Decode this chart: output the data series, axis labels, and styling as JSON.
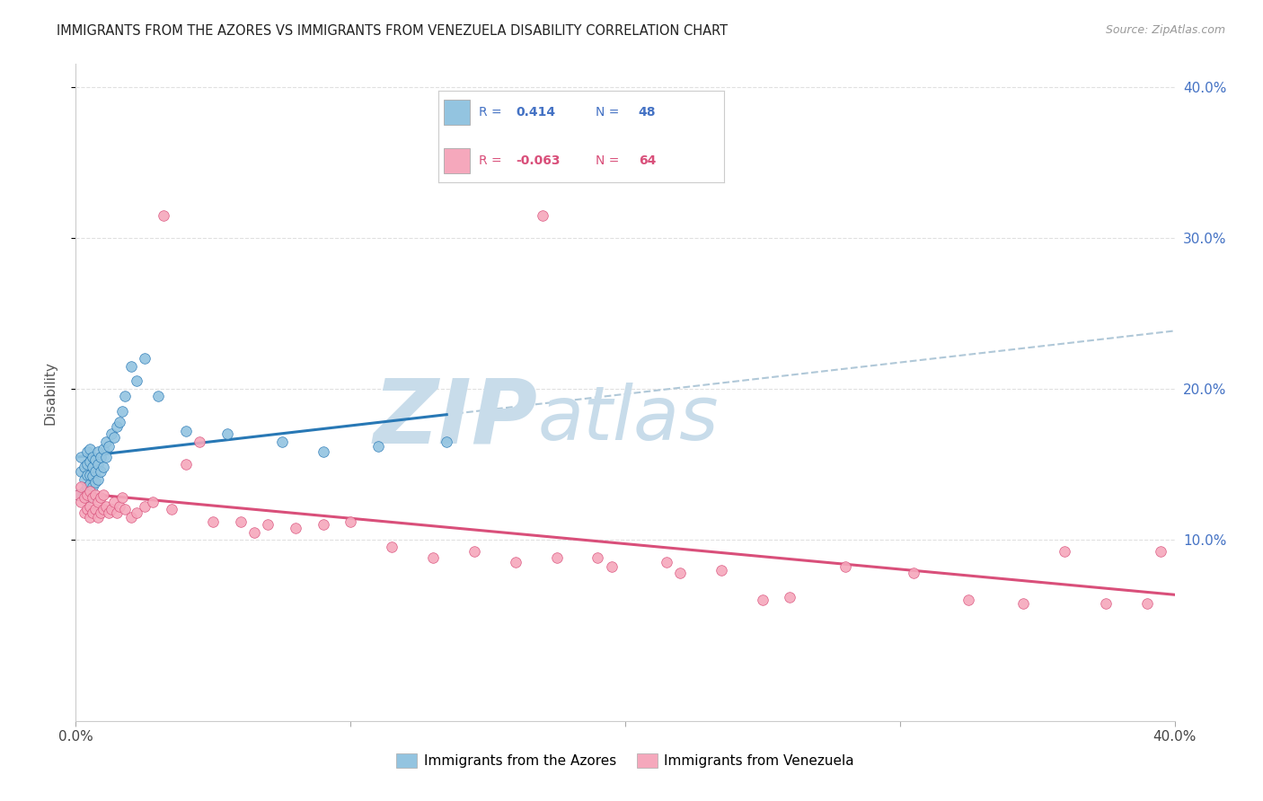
{
  "title": "IMMIGRANTS FROM THE AZORES VS IMMIGRANTS FROM VENEZUELA DISABILITY CORRELATION CHART",
  "source": "Source: ZipAtlas.com",
  "ylabel": "Disability",
  "xlim": [
    0.0,
    0.4
  ],
  "ylim": [
    -0.02,
    0.415
  ],
  "azores_color": "#93c4e0",
  "azores_line_color": "#2878b5",
  "venezuela_color": "#f5a8bc",
  "venezuela_line_color": "#d94f7a",
  "dashed_color": "#b0c8d8",
  "R_azores": 0.414,
  "N_azores": 48,
  "R_venezuela": -0.063,
  "N_venezuela": 64,
  "background_color": "#ffffff",
  "grid_color": "#e0e0e0",
  "azores_scatter_x": [
    0.001,
    0.002,
    0.002,
    0.003,
    0.003,
    0.003,
    0.004,
    0.004,
    0.004,
    0.004,
    0.005,
    0.005,
    0.005,
    0.005,
    0.005,
    0.006,
    0.006,
    0.006,
    0.006,
    0.007,
    0.007,
    0.007,
    0.008,
    0.008,
    0.008,
    0.009,
    0.009,
    0.01,
    0.01,
    0.011,
    0.011,
    0.012,
    0.013,
    0.014,
    0.015,
    0.016,
    0.017,
    0.018,
    0.02,
    0.022,
    0.025,
    0.03,
    0.04,
    0.055,
    0.075,
    0.09,
    0.11,
    0.135
  ],
  "azores_scatter_y": [
    0.13,
    0.145,
    0.155,
    0.132,
    0.14,
    0.148,
    0.135,
    0.143,
    0.15,
    0.158,
    0.128,
    0.137,
    0.143,
    0.152,
    0.16,
    0.135,
    0.142,
    0.148,
    0.155,
    0.138,
    0.145,
    0.153,
    0.14,
    0.15,
    0.158,
    0.145,
    0.155,
    0.148,
    0.16,
    0.155,
    0.165,
    0.162,
    0.17,
    0.168,
    0.175,
    0.178,
    0.185,
    0.195,
    0.215,
    0.205,
    0.22,
    0.195,
    0.172,
    0.17,
    0.165,
    0.158,
    0.162,
    0.165
  ],
  "venezuela_scatter_x": [
    0.001,
    0.002,
    0.002,
    0.003,
    0.003,
    0.004,
    0.004,
    0.005,
    0.005,
    0.005,
    0.006,
    0.006,
    0.007,
    0.007,
    0.008,
    0.008,
    0.009,
    0.009,
    0.01,
    0.01,
    0.011,
    0.012,
    0.013,
    0.014,
    0.015,
    0.016,
    0.017,
    0.018,
    0.02,
    0.022,
    0.025,
    0.028,
    0.032,
    0.035,
    0.04,
    0.045,
    0.05,
    0.06,
    0.065,
    0.07,
    0.08,
    0.09,
    0.1,
    0.115,
    0.13,
    0.145,
    0.16,
    0.175,
    0.195,
    0.215,
    0.235,
    0.26,
    0.28,
    0.305,
    0.325,
    0.345,
    0.36,
    0.375,
    0.39,
    0.395,
    0.17,
    0.19,
    0.22,
    0.25
  ],
  "venezuela_scatter_y": [
    0.13,
    0.125,
    0.135,
    0.118,
    0.128,
    0.12,
    0.13,
    0.115,
    0.122,
    0.132,
    0.118,
    0.128,
    0.12,
    0.13,
    0.115,
    0.125,
    0.118,
    0.128,
    0.12,
    0.13,
    0.122,
    0.118,
    0.12,
    0.125,
    0.118,
    0.122,
    0.128,
    0.12,
    0.115,
    0.118,
    0.122,
    0.125,
    0.315,
    0.12,
    0.15,
    0.165,
    0.112,
    0.112,
    0.105,
    0.11,
    0.108,
    0.11,
    0.112,
    0.095,
    0.088,
    0.092,
    0.085,
    0.088,
    0.082,
    0.085,
    0.08,
    0.062,
    0.082,
    0.078,
    0.06,
    0.058,
    0.092,
    0.058,
    0.058,
    0.092,
    0.315,
    0.088,
    0.078,
    0.06
  ]
}
